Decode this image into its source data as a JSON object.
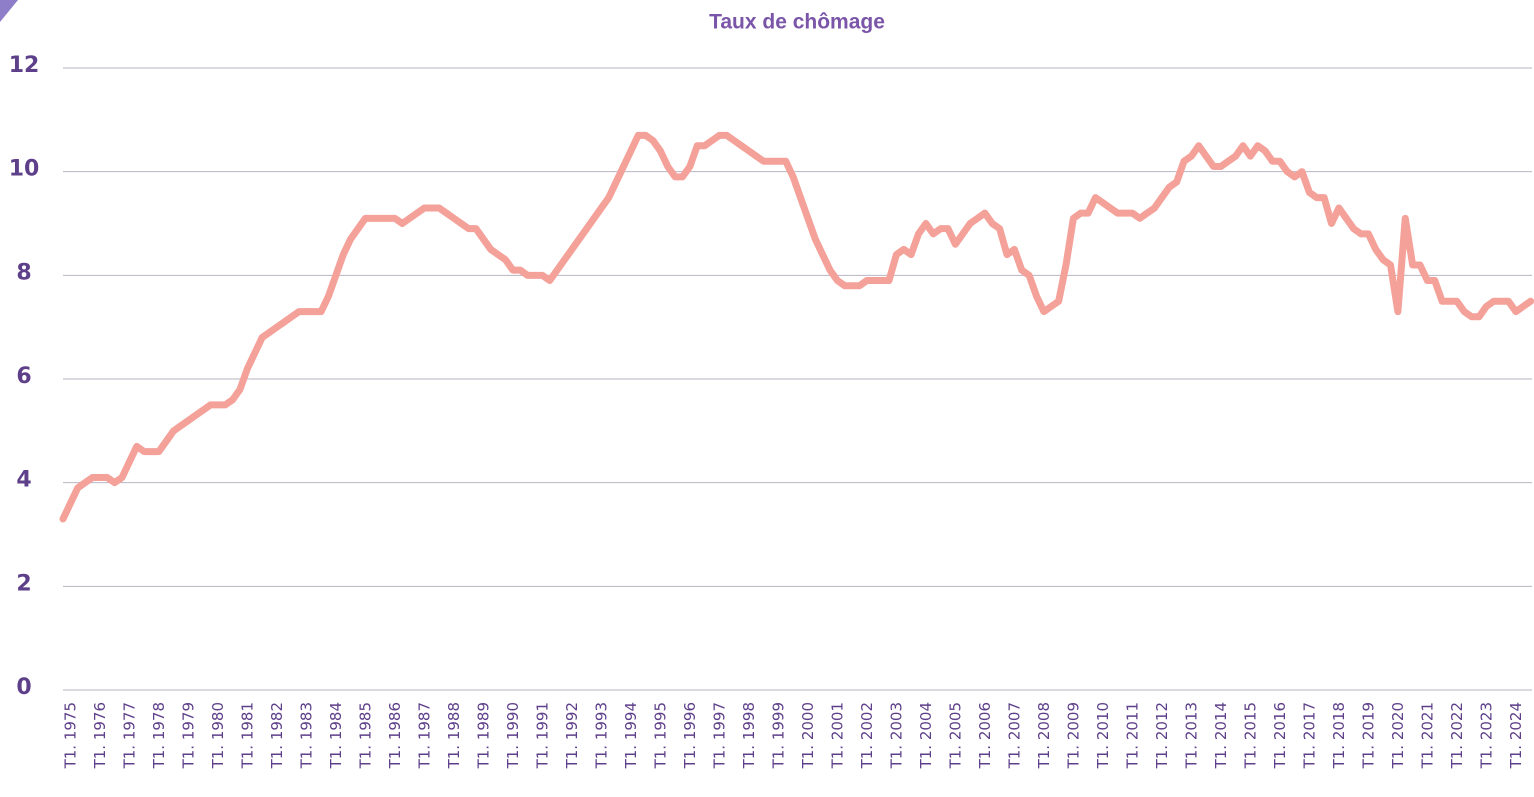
{
  "chart_data": {
    "type": "line",
    "title": "Taux de chômage",
    "categories": [
      "T1. 1975",
      null,
      null,
      null,
      "T1. 1976",
      null,
      null,
      null,
      "T1. 1977",
      null,
      null,
      null,
      "T1. 1978",
      null,
      null,
      null,
      "T1. 1979",
      null,
      null,
      null,
      "T1. 1980",
      null,
      null,
      null,
      "T1. 1981",
      null,
      null,
      null,
      "T1. 1982",
      null,
      null,
      null,
      "T1. 1983",
      null,
      null,
      null,
      "T1. 1984",
      null,
      null,
      null,
      "T1. 1985",
      null,
      null,
      null,
      "T1. 1986",
      null,
      null,
      null,
      "T1. 1987",
      null,
      null,
      null,
      "T1. 1988",
      null,
      null,
      null,
      "T1. 1989",
      null,
      null,
      null,
      "T1. 1990",
      null,
      null,
      null,
      "T1. 1991",
      null,
      null,
      null,
      "T1. 1992",
      null,
      null,
      null,
      "T1. 1993",
      null,
      null,
      null,
      "T1. 1994",
      null,
      null,
      null,
      "T1. 1995",
      null,
      null,
      null,
      "T1. 1996",
      null,
      null,
      null,
      "T1. 1997",
      null,
      null,
      null,
      "T1. 1998",
      null,
      null,
      null,
      "T1. 1999",
      null,
      null,
      null,
      "T1. 2000",
      null,
      null,
      null,
      "T1. 2001",
      null,
      null,
      null,
      "T1. 2002",
      null,
      null,
      null,
      "T1. 2003",
      null,
      null,
      null,
      "T1. 2004",
      null,
      null,
      null,
      "T1. 2005",
      null,
      null,
      null,
      "T1. 2006",
      null,
      null,
      null,
      "T1. 2007",
      null,
      null,
      null,
      "T1. 2008",
      null,
      null,
      null,
      "T1. 2009",
      null,
      null,
      null,
      "T1. 2010",
      null,
      null,
      null,
      "T1. 2011",
      null,
      null,
      null,
      "T1. 2012",
      null,
      null,
      null,
      "T1. 2013",
      null,
      null,
      null,
      "T1. 2014",
      null,
      null,
      null,
      "T1. 2015",
      null,
      null,
      null,
      "T1. 2016",
      null,
      null,
      null,
      "T1. 2017",
      null,
      null,
      null,
      "T1. 2018",
      null,
      null,
      null,
      "T1. 2019",
      null,
      null,
      null,
      "T1. 2020",
      null,
      null,
      null,
      "T1. 2021",
      null,
      null,
      null,
      "T1. 2022",
      null,
      null,
      null,
      "T1. 2023",
      null,
      null,
      null,
      "T1. 2024",
      null,
      null,
      null
    ],
    "series": [
      {
        "color": "#f4a19a",
        "values": [
          3.3,
          3.6,
          3.9,
          4.0,
          4.1,
          4.1,
          4.1,
          4.0,
          4.1,
          4.4,
          4.7,
          4.6,
          4.6,
          4.6,
          4.8,
          5.0,
          5.1,
          5.2,
          5.3,
          5.4,
          5.5,
          5.5,
          5.5,
          5.6,
          5.8,
          6.2,
          6.5,
          6.8,
          6.9,
          7.0,
          7.1,
          7.2,
          7.3,
          7.3,
          7.3,
          7.3,
          7.6,
          8.0,
          8.4,
          8.7,
          8.9,
          9.1,
          9.1,
          9.1,
          9.1,
          9.1,
          9.0,
          9.1,
          9.2,
          9.3,
          9.3,
          9.3,
          9.2,
          9.1,
          9.0,
          8.9,
          8.9,
          8.7,
          8.5,
          8.4,
          8.3,
          8.1,
          8.1,
          8.0,
          8.0,
          8.0,
          7.9,
          8.1,
          8.3,
          8.5,
          8.7,
          8.9,
          9.1,
          9.3,
          9.5,
          9.8,
          10.1,
          10.4,
          10.7,
          10.7,
          10.6,
          10.4,
          10.1,
          9.9,
          9.9,
          10.1,
          10.5,
          10.5,
          10.6,
          10.7,
          10.7,
          10.6,
          10.5,
          10.4,
          10.3,
          10.2,
          10.2,
          10.2,
          10.2,
          9.9,
          9.5,
          9.1,
          8.7,
          8.4,
          8.1,
          7.9,
          7.8,
          7.8,
          7.8,
          7.9,
          7.9,
          7.9,
          7.9,
          8.4,
          8.5,
          8.4,
          8.8,
          9.0,
          8.8,
          8.9,
          8.9,
          8.6,
          8.8,
          9.0,
          9.1,
          9.2,
          9.0,
          8.9,
          8.4,
          8.5,
          8.1,
          8.0,
          7.6,
          7.3,
          7.4,
          7.5,
          8.2,
          9.1,
          9.2,
          9.2,
          9.5,
          9.4,
          9.3,
          9.2,
          9.2,
          9.2,
          9.1,
          9.2,
          9.3,
          9.5,
          9.7,
          9.8,
          10.2,
          10.3,
          10.5,
          10.3,
          10.1,
          10.1,
          10.2,
          10.3,
          10.5,
          10.3,
          10.5,
          10.4,
          10.2,
          10.2,
          10.0,
          9.9,
          10.0,
          9.6,
          9.5,
          9.5,
          9.0,
          9.3,
          9.1,
          8.9,
          8.8,
          8.8,
          8.5,
          8.3,
          8.2,
          7.3,
          9.1,
          8.2,
          8.2,
          7.9,
          7.9,
          7.5,
          7.5,
          7.5,
          7.3,
          7.2,
          7.2,
          7.4,
          7.5,
          7.5,
          7.5,
          7.3,
          7.4,
          7.5
        ]
      }
    ],
    "ylim": [
      0,
      12
    ],
    "yticks": [
      0,
      2,
      4,
      6,
      8,
      10,
      12
    ],
    "grid": true
  }
}
